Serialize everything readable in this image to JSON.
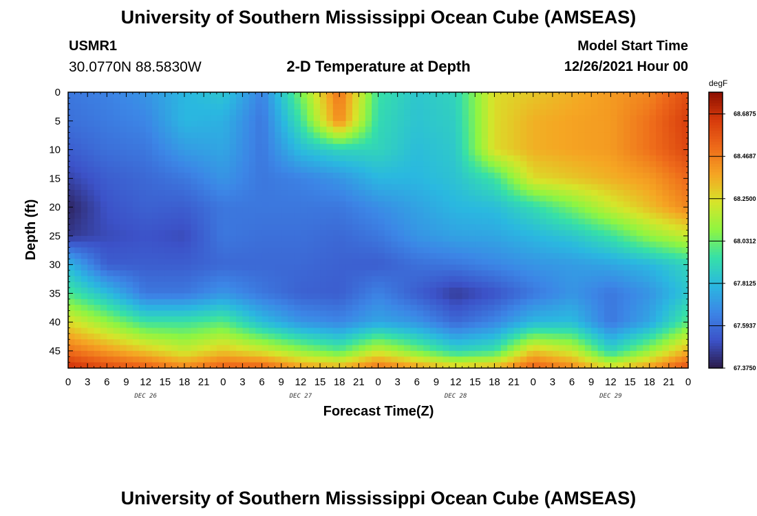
{
  "header": {
    "title": "University of Southern Mississippi Ocean Cube (AMSEAS)",
    "station_id": "USMR1",
    "station_coords": "30.0770N  88.5830W",
    "plot_title": "2-D Temperature at Depth",
    "start_label": "Model Start Time",
    "start_value": "12/26/2021 Hour 00"
  },
  "footer": {
    "title": "University of Southern Mississippi Ocean Cube (AMSEAS)"
  },
  "chart_data": {
    "type": "heatmap",
    "title": "2-D Temperature at Depth",
    "xlabel": "Forecast Time(Z)",
    "ylabel": "Depth (ft)",
    "x_hours_range": [
      0,
      96
    ],
    "x_ticks": [
      "0",
      "3",
      "6",
      "9",
      "12",
      "15",
      "18",
      "21",
      "0",
      "3",
      "6",
      "9",
      "12",
      "15",
      "18",
      "21",
      "0",
      "3",
      "6",
      "9",
      "12",
      "15",
      "18",
      "21",
      "0",
      "3",
      "6",
      "9",
      "12",
      "15",
      "18",
      "21",
      "0"
    ],
    "date_labels": [
      {
        "label": "DEC 26",
        "hour": 12
      },
      {
        "label": "DEC 27",
        "hour": 36
      },
      {
        "label": "DEC 28",
        "hour": 60
      },
      {
        "label": "DEC 29",
        "hour": 84
      }
    ],
    "ylim": [
      0,
      48
    ],
    "y_ticks": [
      "0",
      "5",
      "10",
      "15",
      "20",
      "25",
      "30",
      "35",
      "40",
      "45"
    ],
    "colorbar": {
      "unit": "degF",
      "min": 67.375,
      "max": 68.8,
      "labels": [
        "68.6875",
        "68.4687",
        "68.2500",
        "68.0312",
        "67.8125",
        "67.5937",
        "67.3750"
      ],
      "label_values": [
        68.6875,
        68.46875,
        68.25,
        68.03125,
        67.8125,
        67.59375,
        67.375
      ]
    },
    "colors": [
      "#2b1b4a",
      "#3c52c8",
      "#3c86e6",
      "#2ab8e0",
      "#36e0a8",
      "#8ef542",
      "#d6e52a",
      "#f5a623",
      "#ee6a1a",
      "#d63a0c",
      "#8c0f00"
    ],
    "field": {
      "times": [
        0,
        6,
        12,
        18,
        24,
        30,
        36,
        42,
        48,
        54,
        60,
        66,
        72,
        78,
        84,
        90,
        96
      ],
      "depths": [
        0,
        5,
        10,
        15,
        20,
        25,
        30,
        35,
        40,
        45,
        48
      ],
      "values": [
        [
          67.62,
          67.65,
          67.7,
          67.8,
          67.85,
          67.65,
          68.05,
          68.5,
          67.95,
          67.85,
          67.9,
          68.25,
          68.3,
          68.35,
          68.4,
          68.45,
          68.6
        ],
        [
          67.6,
          67.63,
          67.66,
          67.8,
          67.78,
          67.62,
          67.95,
          68.45,
          67.92,
          67.84,
          67.88,
          68.25,
          68.35,
          68.38,
          68.4,
          68.5,
          68.65
        ],
        [
          67.55,
          67.6,
          67.62,
          67.72,
          67.75,
          67.62,
          67.82,
          67.9,
          67.9,
          67.82,
          67.86,
          68.25,
          68.35,
          68.38,
          68.4,
          68.5,
          68.62
        ],
        [
          67.48,
          67.55,
          67.58,
          67.62,
          67.7,
          67.62,
          67.65,
          67.7,
          67.8,
          67.8,
          67.84,
          67.95,
          68.25,
          68.3,
          68.35,
          68.4,
          68.52
        ],
        [
          67.4,
          67.52,
          67.56,
          67.55,
          67.62,
          67.62,
          67.62,
          67.62,
          67.68,
          67.74,
          67.8,
          67.82,
          67.92,
          68.05,
          68.2,
          68.32,
          68.45
        ],
        [
          67.45,
          67.5,
          67.52,
          67.5,
          67.62,
          67.6,
          67.6,
          67.58,
          67.62,
          67.7,
          67.74,
          67.75,
          67.8,
          67.85,
          67.95,
          68.1,
          68.2
        ],
        [
          67.8,
          67.55,
          67.55,
          67.55,
          67.58,
          67.58,
          67.58,
          67.56,
          67.55,
          67.6,
          67.62,
          67.66,
          67.7,
          67.72,
          67.75,
          67.8,
          67.9
        ],
        [
          67.98,
          67.82,
          67.62,
          67.62,
          67.7,
          67.62,
          67.56,
          67.55,
          67.65,
          67.55,
          67.46,
          67.52,
          67.62,
          67.7,
          67.62,
          67.7,
          67.85
        ],
        [
          68.25,
          68.1,
          67.95,
          67.95,
          68.0,
          67.82,
          67.7,
          67.66,
          67.75,
          67.7,
          67.58,
          67.66,
          67.8,
          67.82,
          67.62,
          67.75,
          68.0
        ],
        [
          68.5,
          68.4,
          68.3,
          68.2,
          68.3,
          68.22,
          68.1,
          68.0,
          68.2,
          68.05,
          67.9,
          67.95,
          68.3,
          68.2,
          67.9,
          68.1,
          68.35
        ],
        [
          68.7,
          68.6,
          68.55,
          68.45,
          68.55,
          68.55,
          68.4,
          68.35,
          68.5,
          68.4,
          68.3,
          68.35,
          68.55,
          68.45,
          68.25,
          68.4,
          68.6
        ]
      ]
    }
  }
}
